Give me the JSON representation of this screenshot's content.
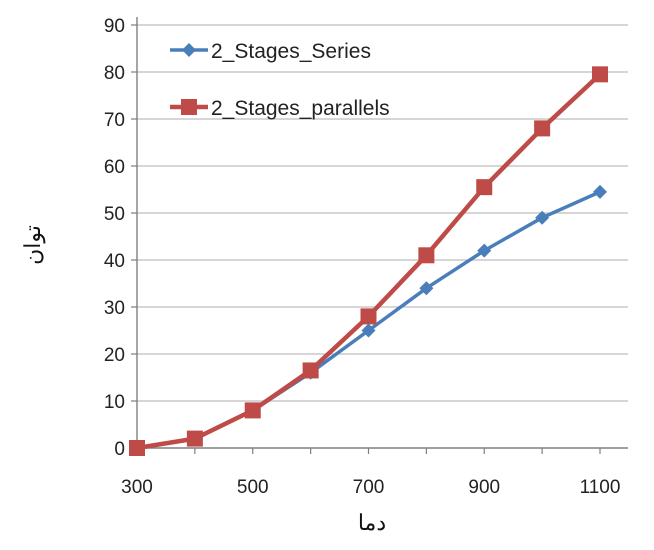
{
  "chart_data": {
    "type": "line",
    "title": "",
    "xlabel": "دما",
    "ylabel": "توان",
    "x": [
      300,
      400,
      500,
      600,
      700,
      800,
      900,
      1000,
      1100
    ],
    "xlim": [
      300,
      1100
    ],
    "x_ticks": [
      300,
      500,
      700,
      900,
      1100
    ],
    "ylim": [
      0,
      90
    ],
    "y_ticks": [
      0,
      10,
      20,
      30,
      40,
      50,
      60,
      70,
      80,
      90
    ],
    "grid": "horizontal",
    "legend_position": "top-left",
    "series": [
      {
        "name": "2_Stages_Series",
        "color": "#4a7ebb",
        "marker": "diamond",
        "values": [
          0,
          2,
          8,
          16,
          25,
          34,
          42,
          49,
          54.5
        ]
      },
      {
        "name": "2_Stages_parallels",
        "color": "#be4b48",
        "marker": "square",
        "values": [
          0,
          2,
          8,
          16.5,
          28,
          41,
          55.5,
          68,
          79.5
        ]
      }
    ]
  }
}
